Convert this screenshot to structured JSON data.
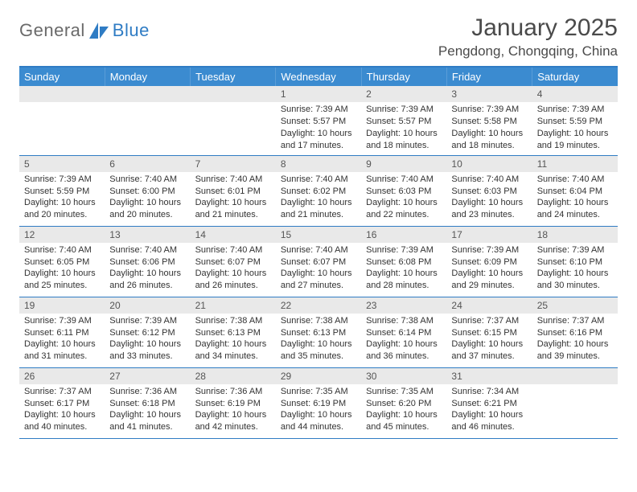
{
  "header": {
    "logo_general": "General",
    "logo_blue": "Blue",
    "month_title": "January 2025",
    "location": "Pengdong, Chongqing, China"
  },
  "colors": {
    "header_bg": "#3b8bd0",
    "header_border_top": "#2f7cc4",
    "row_border": "#2f7cc4",
    "daynum_bg": "#e9e9e9",
    "logo_gray": "#6a6a6a",
    "logo_blue": "#2f7cc4",
    "text": "#333333",
    "background": "#ffffff"
  },
  "daysOfWeek": [
    "Sunday",
    "Monday",
    "Tuesday",
    "Wednesday",
    "Thursday",
    "Friday",
    "Saturday"
  ],
  "weeks": [
    [
      null,
      null,
      null,
      {
        "n": "1",
        "sr": "Sunrise: 7:39 AM",
        "ss": "Sunset: 5:57 PM",
        "d1": "Daylight: 10 hours",
        "d2": "and 17 minutes."
      },
      {
        "n": "2",
        "sr": "Sunrise: 7:39 AM",
        "ss": "Sunset: 5:57 PM",
        "d1": "Daylight: 10 hours",
        "d2": "and 18 minutes."
      },
      {
        "n": "3",
        "sr": "Sunrise: 7:39 AM",
        "ss": "Sunset: 5:58 PM",
        "d1": "Daylight: 10 hours",
        "d2": "and 18 minutes."
      },
      {
        "n": "4",
        "sr": "Sunrise: 7:39 AM",
        "ss": "Sunset: 5:59 PM",
        "d1": "Daylight: 10 hours",
        "d2": "and 19 minutes."
      }
    ],
    [
      {
        "n": "5",
        "sr": "Sunrise: 7:39 AM",
        "ss": "Sunset: 5:59 PM",
        "d1": "Daylight: 10 hours",
        "d2": "and 20 minutes."
      },
      {
        "n": "6",
        "sr": "Sunrise: 7:40 AM",
        "ss": "Sunset: 6:00 PM",
        "d1": "Daylight: 10 hours",
        "d2": "and 20 minutes."
      },
      {
        "n": "7",
        "sr": "Sunrise: 7:40 AM",
        "ss": "Sunset: 6:01 PM",
        "d1": "Daylight: 10 hours",
        "d2": "and 21 minutes."
      },
      {
        "n": "8",
        "sr": "Sunrise: 7:40 AM",
        "ss": "Sunset: 6:02 PM",
        "d1": "Daylight: 10 hours",
        "d2": "and 21 minutes."
      },
      {
        "n": "9",
        "sr": "Sunrise: 7:40 AM",
        "ss": "Sunset: 6:03 PM",
        "d1": "Daylight: 10 hours",
        "d2": "and 22 minutes."
      },
      {
        "n": "10",
        "sr": "Sunrise: 7:40 AM",
        "ss": "Sunset: 6:03 PM",
        "d1": "Daylight: 10 hours",
        "d2": "and 23 minutes."
      },
      {
        "n": "11",
        "sr": "Sunrise: 7:40 AM",
        "ss": "Sunset: 6:04 PM",
        "d1": "Daylight: 10 hours",
        "d2": "and 24 minutes."
      }
    ],
    [
      {
        "n": "12",
        "sr": "Sunrise: 7:40 AM",
        "ss": "Sunset: 6:05 PM",
        "d1": "Daylight: 10 hours",
        "d2": "and 25 minutes."
      },
      {
        "n": "13",
        "sr": "Sunrise: 7:40 AM",
        "ss": "Sunset: 6:06 PM",
        "d1": "Daylight: 10 hours",
        "d2": "and 26 minutes."
      },
      {
        "n": "14",
        "sr": "Sunrise: 7:40 AM",
        "ss": "Sunset: 6:07 PM",
        "d1": "Daylight: 10 hours",
        "d2": "and 26 minutes."
      },
      {
        "n": "15",
        "sr": "Sunrise: 7:40 AM",
        "ss": "Sunset: 6:07 PM",
        "d1": "Daylight: 10 hours",
        "d2": "and 27 minutes."
      },
      {
        "n": "16",
        "sr": "Sunrise: 7:39 AM",
        "ss": "Sunset: 6:08 PM",
        "d1": "Daylight: 10 hours",
        "d2": "and 28 minutes."
      },
      {
        "n": "17",
        "sr": "Sunrise: 7:39 AM",
        "ss": "Sunset: 6:09 PM",
        "d1": "Daylight: 10 hours",
        "d2": "and 29 minutes."
      },
      {
        "n": "18",
        "sr": "Sunrise: 7:39 AM",
        "ss": "Sunset: 6:10 PM",
        "d1": "Daylight: 10 hours",
        "d2": "and 30 minutes."
      }
    ],
    [
      {
        "n": "19",
        "sr": "Sunrise: 7:39 AM",
        "ss": "Sunset: 6:11 PM",
        "d1": "Daylight: 10 hours",
        "d2": "and 31 minutes."
      },
      {
        "n": "20",
        "sr": "Sunrise: 7:39 AM",
        "ss": "Sunset: 6:12 PM",
        "d1": "Daylight: 10 hours",
        "d2": "and 33 minutes."
      },
      {
        "n": "21",
        "sr": "Sunrise: 7:38 AM",
        "ss": "Sunset: 6:13 PM",
        "d1": "Daylight: 10 hours",
        "d2": "and 34 minutes."
      },
      {
        "n": "22",
        "sr": "Sunrise: 7:38 AM",
        "ss": "Sunset: 6:13 PM",
        "d1": "Daylight: 10 hours",
        "d2": "and 35 minutes."
      },
      {
        "n": "23",
        "sr": "Sunrise: 7:38 AM",
        "ss": "Sunset: 6:14 PM",
        "d1": "Daylight: 10 hours",
        "d2": "and 36 minutes."
      },
      {
        "n": "24",
        "sr": "Sunrise: 7:37 AM",
        "ss": "Sunset: 6:15 PM",
        "d1": "Daylight: 10 hours",
        "d2": "and 37 minutes."
      },
      {
        "n": "25",
        "sr": "Sunrise: 7:37 AM",
        "ss": "Sunset: 6:16 PM",
        "d1": "Daylight: 10 hours",
        "d2": "and 39 minutes."
      }
    ],
    [
      {
        "n": "26",
        "sr": "Sunrise: 7:37 AM",
        "ss": "Sunset: 6:17 PM",
        "d1": "Daylight: 10 hours",
        "d2": "and 40 minutes."
      },
      {
        "n": "27",
        "sr": "Sunrise: 7:36 AM",
        "ss": "Sunset: 6:18 PM",
        "d1": "Daylight: 10 hours",
        "d2": "and 41 minutes."
      },
      {
        "n": "28",
        "sr": "Sunrise: 7:36 AM",
        "ss": "Sunset: 6:19 PM",
        "d1": "Daylight: 10 hours",
        "d2": "and 42 minutes."
      },
      {
        "n": "29",
        "sr": "Sunrise: 7:35 AM",
        "ss": "Sunset: 6:19 PM",
        "d1": "Daylight: 10 hours",
        "d2": "and 44 minutes."
      },
      {
        "n": "30",
        "sr": "Sunrise: 7:35 AM",
        "ss": "Sunset: 6:20 PM",
        "d1": "Daylight: 10 hours",
        "d2": "and 45 minutes."
      },
      {
        "n": "31",
        "sr": "Sunrise: 7:34 AM",
        "ss": "Sunset: 6:21 PM",
        "d1": "Daylight: 10 hours",
        "d2": "and 46 minutes."
      },
      null
    ]
  ]
}
